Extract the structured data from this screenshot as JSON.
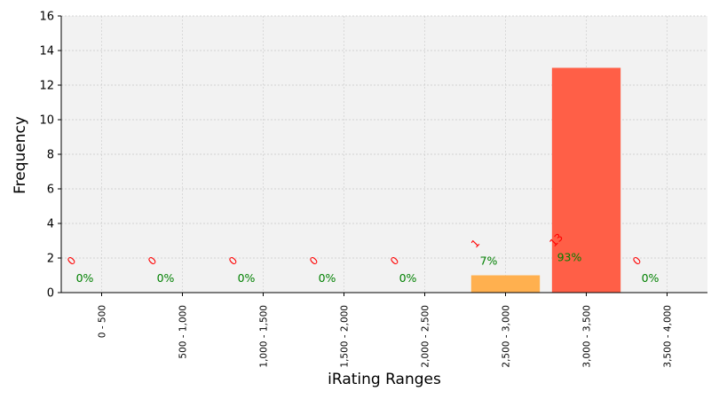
{
  "chart_data": {
    "type": "bar",
    "xlabel": "iRating Ranges",
    "ylabel": "Frequency",
    "categories": [
      "0 - 500",
      "500 - 1,000",
      "1,000 - 1,500",
      "1,500 - 2,000",
      "2,000 - 2,500",
      "2,500 - 3,000",
      "3,000 - 3,500",
      "3,500 - 4,000"
    ],
    "values": [
      0,
      0,
      0,
      0,
      0,
      1,
      13,
      0
    ],
    "count_labels": [
      "0",
      "0",
      "0",
      "0",
      "0",
      "1",
      "13",
      "0"
    ],
    "percent_labels": [
      "0%",
      "0%",
      "0%",
      "0%",
      "0%",
      "7%",
      "93%",
      "0%"
    ],
    "ylim": [
      0,
      16
    ],
    "yticks": [
      "0",
      "2",
      "4",
      "6",
      "8",
      "10",
      "12",
      "14",
      "16"
    ],
    "grid": true,
    "colors": {
      "plot_background": "#f2f2f2",
      "bar_low": "#ffb04f",
      "bar_high": "#ff5f47",
      "count_label": "#ff0000",
      "percent_label": "#008000",
      "grid": "#c8c8c8"
    }
  }
}
